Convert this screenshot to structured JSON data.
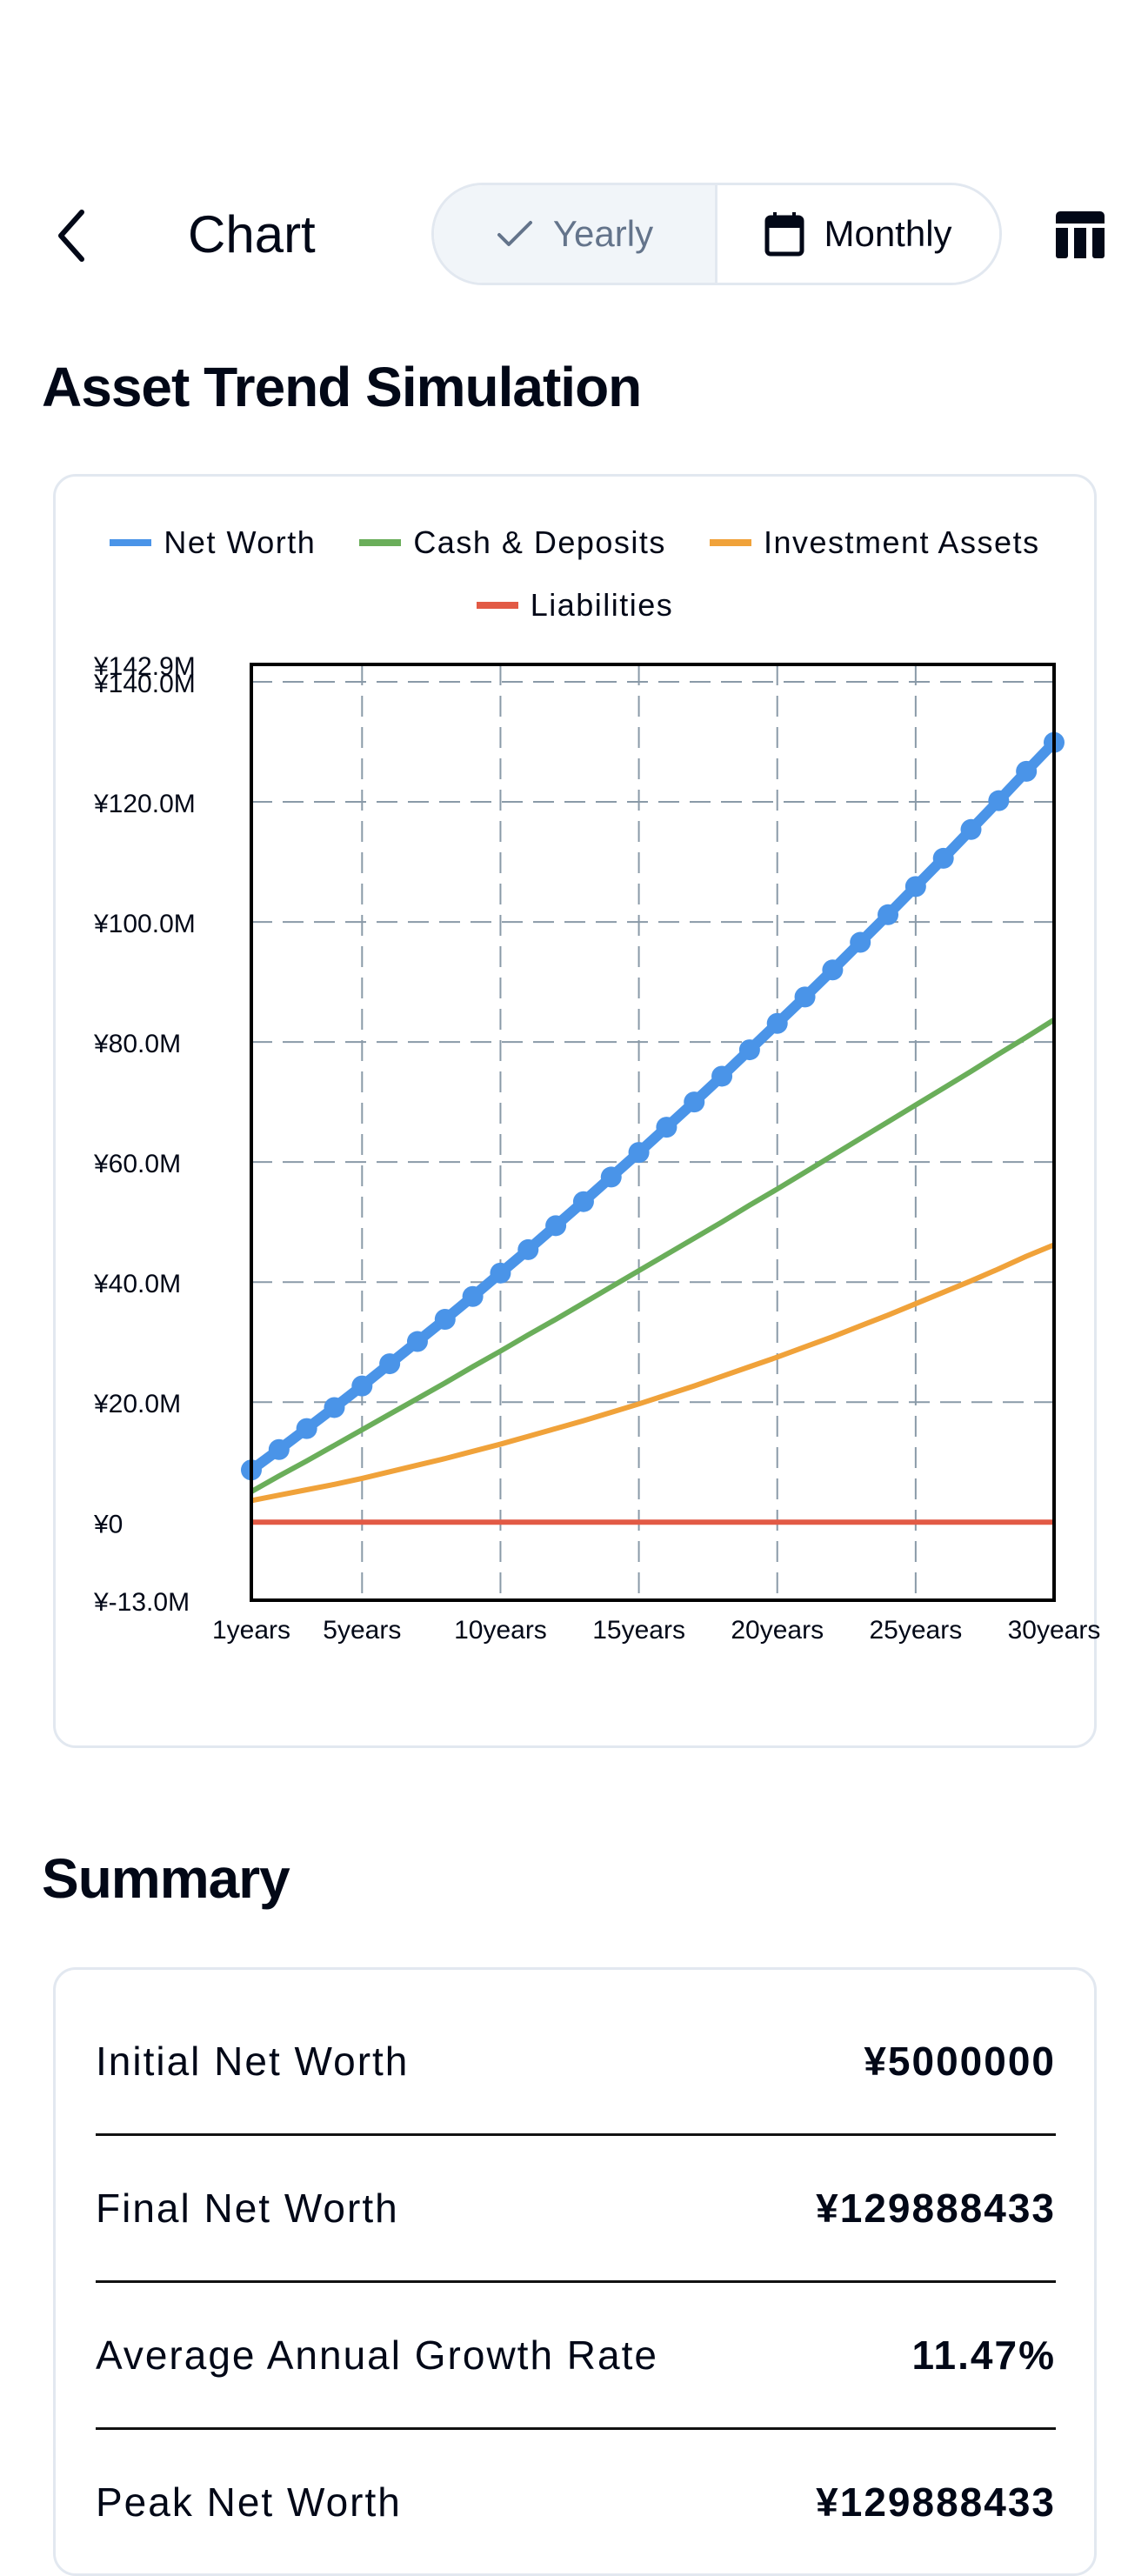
{
  "header": {
    "title": "Chart",
    "back_icon": "chevron-left-icon",
    "toggle": {
      "yearly_label": "Yearly",
      "yearly_icon": "check-icon",
      "monthly_label": "Monthly",
      "monthly_icon": "calendar-icon",
      "selected": "Yearly"
    },
    "table_icon": "table-icon"
  },
  "chart_section": {
    "title": "Asset Trend Simulation"
  },
  "summary_section": {
    "title": "Summary",
    "rows": [
      {
        "label": "Initial Net Worth",
        "value": "¥5000000"
      },
      {
        "label": "Final Net Worth",
        "value": "¥129888433"
      },
      {
        "label": "Average Annual Growth Rate",
        "value": "11.47%"
      },
      {
        "label": "Peak Net Worth",
        "value": "¥129888433"
      }
    ]
  },
  "chart_data": {
    "type": "line",
    "title": "Asset Trend Simulation",
    "xlabel": "",
    "ylabel": "",
    "x": [
      1,
      2,
      3,
      4,
      5,
      6,
      7,
      8,
      9,
      10,
      11,
      12,
      13,
      14,
      15,
      16,
      17,
      18,
      19,
      20,
      21,
      22,
      23,
      24,
      25,
      26,
      27,
      28,
      29,
      30
    ],
    "x_tick_labels": [
      "1years",
      "5years",
      "10years",
      "15years",
      "20years",
      "25years",
      "30years"
    ],
    "x_tick_values": [
      1,
      5,
      10,
      15,
      20,
      25,
      30
    ],
    "y_tick_labels": [
      "¥142.9M",
      "¥140.0M",
      "¥120.0M",
      "¥100.0M",
      "¥80.0M",
      "¥60.0M",
      "¥40.0M",
      "¥20.0M",
      "¥0",
      "¥-13.0M"
    ],
    "y_tick_values": [
      142.9,
      140,
      120,
      100,
      80,
      60,
      40,
      20,
      0,
      -13.0
    ],
    "ylim": [
      -13.0,
      142.9
    ],
    "y_unit": "million ¥",
    "grid": true,
    "legend_position": "top",
    "series": [
      {
        "name": "Net Worth",
        "color": "#4a94e8",
        "markers": true,
        "values": [
          8.7,
          12.1,
          15.6,
          19.1,
          22.7,
          26.4,
          30.1,
          33.8,
          37.6,
          41.5,
          45.4,
          49.4,
          53.4,
          57.5,
          61.6,
          65.8,
          70.0,
          74.3,
          78.7,
          83.1,
          87.5,
          92.0,
          96.6,
          101.2,
          105.9,
          110.6,
          115.4,
          120.2,
          125.1,
          129.9
        ]
      },
      {
        "name": "Cash & Deposits",
        "color": "#6aae5a",
        "markers": false,
        "values": [
          5.1,
          7.7,
          10.2,
          12.8,
          15.4,
          18.0,
          20.6,
          23.2,
          25.9,
          28.5,
          31.2,
          33.8,
          36.5,
          39.2,
          41.9,
          44.6,
          47.3,
          50.0,
          52.8,
          55.5,
          58.3,
          61.1,
          63.9,
          66.7,
          69.5,
          72.3,
          75.1,
          78.0,
          80.8,
          83.7
        ]
      },
      {
        "name": "Investment Assets",
        "color": "#f0a23a",
        "markers": false,
        "values": [
          3.6,
          4.5,
          5.4,
          6.3,
          7.3,
          8.4,
          9.5,
          10.6,
          11.8,
          13.0,
          14.3,
          15.6,
          16.9,
          18.3,
          19.7,
          21.2,
          22.7,
          24.3,
          25.9,
          27.5,
          29.2,
          30.9,
          32.7,
          34.5,
          36.4,
          38.3,
          40.2,
          42.2,
          44.3,
          46.2
        ]
      },
      {
        "name": "Liabilities",
        "color": "#e25a45",
        "markers": false,
        "values": [
          0,
          0,
          0,
          0,
          0,
          0,
          0,
          0,
          0,
          0,
          0,
          0,
          0,
          0,
          0,
          0,
          0,
          0,
          0,
          0,
          0,
          0,
          0,
          0,
          0,
          0,
          0,
          0,
          0,
          0
        ]
      }
    ]
  }
}
